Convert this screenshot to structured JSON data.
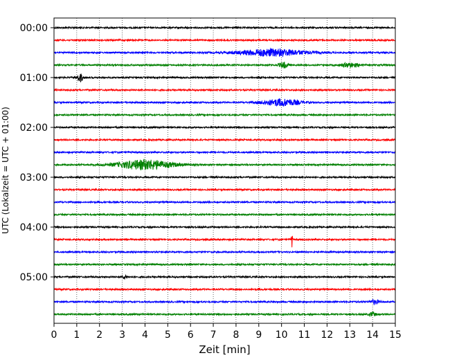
{
  "chart_data": {
    "type": "line",
    "title": "",
    "xlabel": "Zeit  [min]",
    "ylabel": "UTC (Lokalzeit = UTC + 01:00)",
    "xlim": [
      0,
      15
    ],
    "x_ticks": [
      "0",
      "1",
      "2",
      "3",
      "4",
      "5",
      "6",
      "7",
      "8",
      "9",
      "10",
      "11",
      "12",
      "13",
      "14",
      "15"
    ],
    "y_ticks": [
      "00:00",
      "01:00",
      "02:00",
      "03:00",
      "04:00",
      "05:00"
    ],
    "grid": "vertical dotted",
    "trace_interval_min": 15,
    "trace_colors": [
      "#000000",
      "#ff0000",
      "#0000ff",
      "#008000"
    ],
    "traces": [
      {
        "start": "00:00",
        "events": []
      },
      {
        "start": "00:15",
        "events": []
      },
      {
        "start": "00:30",
        "events": [
          {
            "t": 9.6,
            "amp": 5,
            "width": 1.5
          }
        ]
      },
      {
        "start": "00:45",
        "events": [
          {
            "t": 10.1,
            "amp": 4,
            "width": 0.2
          },
          {
            "t": 13.0,
            "amp": 3,
            "width": 0.4
          }
        ]
      },
      {
        "start": "01:00",
        "events": [
          {
            "t": 1.15,
            "amp": 6,
            "width": 0.12
          }
        ]
      },
      {
        "start": "01:15",
        "events": []
      },
      {
        "start": "01:30",
        "events": [
          {
            "t": 10.0,
            "amp": 5,
            "width": 0.8
          }
        ]
      },
      {
        "start": "01:45",
        "events": []
      },
      {
        "start": "02:00",
        "events": []
      },
      {
        "start": "02:15",
        "events": []
      },
      {
        "start": "02:30",
        "events": []
      },
      {
        "start": "02:45",
        "events": [
          {
            "t": 4.0,
            "amp": 7,
            "width": 1.2
          }
        ]
      },
      {
        "start": "03:00",
        "events": []
      },
      {
        "start": "03:15",
        "events": []
      },
      {
        "start": "03:30",
        "events": []
      },
      {
        "start": "03:45",
        "events": []
      },
      {
        "start": "04:00",
        "events": []
      },
      {
        "start": "04:15",
        "events": [
          {
            "t": 10.45,
            "amp": 11,
            "width": 0.03
          }
        ]
      },
      {
        "start": "04:30",
        "events": []
      },
      {
        "start": "04:45",
        "events": []
      },
      {
        "start": "05:00",
        "events": [
          {
            "t": 3.1,
            "amp": 3,
            "width": 0.1
          }
        ]
      },
      {
        "start": "05:15",
        "events": []
      },
      {
        "start": "05:30",
        "events": [
          {
            "t": 14.1,
            "amp": 3,
            "width": 0.2
          }
        ]
      },
      {
        "start": "05:45",
        "events": [
          {
            "t": 14.0,
            "amp": 3,
            "width": 0.15
          }
        ]
      }
    ]
  }
}
